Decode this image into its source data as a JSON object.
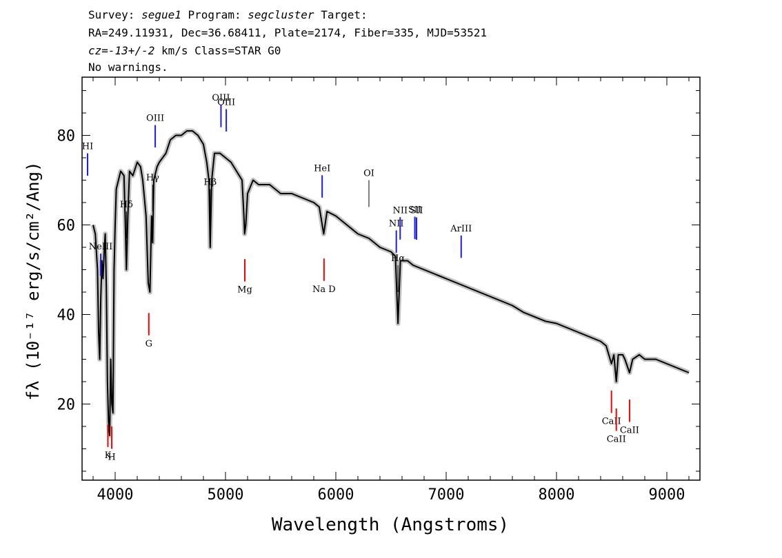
{
  "header": {
    "survey_label": "Survey:",
    "survey": "segue1",
    "program_label": "Program:",
    "program": "segcluster",
    "target_label": "Target:",
    "line2": "RA=249.11931, Dec=36.68411, Plate=2174, Fiber=335, MJD=53521",
    "cz_label": "cz=",
    "cz_value": "-13+/-2",
    "cz_unit": "km/s",
    "class_text": "Class=STAR G0",
    "warnings": "No warnings."
  },
  "chart_data": {
    "type": "line",
    "xlabel": "Wavelength (Angstroms)",
    "ylabel": "fλ (10⁻¹⁷ erg/s/cm²/Ang)",
    "xlim": [
      3700,
      9300
    ],
    "ylim": [
      3,
      93
    ],
    "x_ticks": [
      4000,
      5000,
      6000,
      7000,
      8000,
      9000
    ],
    "y_ticks": [
      20,
      40,
      60,
      80
    ],
    "grid": false,
    "legend": "none",
    "series": [
      {
        "color": "#000000",
        "error_color": "#bbbbbb",
        "points": [
          [
            3800,
            60
          ],
          [
            3820,
            58
          ],
          [
            3840,
            50
          ],
          [
            3850,
            36
          ],
          [
            3860,
            30
          ],
          [
            3870,
            44
          ],
          [
            3880,
            52
          ],
          [
            3890,
            48
          ],
          [
            3900,
            54
          ],
          [
            3910,
            58
          ],
          [
            3920,
            46
          ],
          [
            3930,
            25
          ],
          [
            3940,
            16
          ],
          [
            3950,
            13
          ],
          [
            3960,
            30
          ],
          [
            3970,
            20
          ],
          [
            3980,
            18
          ],
          [
            3990,
            50
          ],
          [
            4000,
            60
          ],
          [
            4010,
            68
          ],
          [
            4030,
            70
          ],
          [
            4050,
            72
          ],
          [
            4080,
            71
          ],
          [
            4090,
            62
          ],
          [
            4102,
            50
          ],
          [
            4115,
            62
          ],
          [
            4130,
            72
          ],
          [
            4160,
            71
          ],
          [
            4200,
            74
          ],
          [
            4230,
            73
          ],
          [
            4250,
            70
          ],
          [
            4280,
            62
          ],
          [
            4300,
            47
          ],
          [
            4315,
            45
          ],
          [
            4330,
            62
          ],
          [
            4340,
            56
          ],
          [
            4350,
            70
          ],
          [
            4380,
            73
          ],
          [
            4400,
            74
          ],
          [
            4430,
            75
          ],
          [
            4460,
            76
          ],
          [
            4500,
            79
          ],
          [
            4550,
            80
          ],
          [
            4600,
            80
          ],
          [
            4650,
            81
          ],
          [
            4700,
            81
          ],
          [
            4750,
            80
          ],
          [
            4800,
            78
          ],
          [
            4830,
            74
          ],
          [
            4850,
            70
          ],
          [
            4861,
            55
          ],
          [
            4875,
            70
          ],
          [
            4900,
            76
          ],
          [
            4950,
            76
          ],
          [
            5000,
            75
          ],
          [
            5050,
            74
          ],
          [
            5100,
            72
          ],
          [
            5150,
            70
          ],
          [
            5167,
            62
          ],
          [
            5173,
            58
          ],
          [
            5184,
            60
          ],
          [
            5200,
            67
          ],
          [
            5250,
            70
          ],
          [
            5300,
            69
          ],
          [
            5400,
            69
          ],
          [
            5500,
            67
          ],
          [
            5600,
            67
          ],
          [
            5700,
            66
          ],
          [
            5800,
            65
          ],
          [
            5850,
            64
          ],
          [
            5890,
            58
          ],
          [
            5896,
            59
          ],
          [
            5920,
            63
          ],
          [
            6000,
            62
          ],
          [
            6100,
            60
          ],
          [
            6200,
            58
          ],
          [
            6300,
            57
          ],
          [
            6400,
            55
          ],
          [
            6500,
            54
          ],
          [
            6540,
            53
          ],
          [
            6563,
            38
          ],
          [
            6585,
            52
          ],
          [
            6650,
            52
          ],
          [
            6700,
            51
          ],
          [
            6800,
            50
          ],
          [
            6900,
            49
          ],
          [
            7000,
            48
          ],
          [
            7100,
            47
          ],
          [
            7200,
            46
          ],
          [
            7300,
            45
          ],
          [
            7400,
            44
          ],
          [
            7500,
            43
          ],
          [
            7600,
            42
          ],
          [
            7700,
            40.5
          ],
          [
            7800,
            39.5
          ],
          [
            7900,
            38.5
          ],
          [
            8000,
            38
          ],
          [
            8100,
            37
          ],
          [
            8200,
            36
          ],
          [
            8300,
            35
          ],
          [
            8400,
            34
          ],
          [
            8450,
            33
          ],
          [
            8498,
            29
          ],
          [
            8520,
            31
          ],
          [
            8542,
            25
          ],
          [
            8560,
            31
          ],
          [
            8600,
            31
          ],
          [
            8620,
            30
          ],
          [
            8662,
            27
          ],
          [
            8690,
            30
          ],
          [
            8750,
            31
          ],
          [
            8800,
            30
          ],
          [
            8900,
            30
          ],
          [
            9000,
            29
          ],
          [
            9100,
            28
          ],
          [
            9200,
            27
          ]
        ]
      }
    ],
    "emission_lines": [
      {
        "label": "HI",
        "x": 3750
      },
      {
        "label": "NeIII",
        "x": 3869
      },
      {
        "label": "OIII",
        "x": 4363
      },
      {
        "label": "OIII",
        "x": 4959
      },
      {
        "label": "OIII",
        "x": 5007
      },
      {
        "label": "HeI",
        "x": 5876
      },
      {
        "label": "NII",
        "x": 6548
      },
      {
        "label": "NII",
        "x": 6583
      },
      {
        "label": "SII",
        "x": 6716
      },
      {
        "label": "SII",
        "x": 6731
      },
      {
        "label": "ArIII",
        "x": 7136
      }
    ],
    "balmer_lines": [
      {
        "label": "Hδ",
        "x": 4102
      },
      {
        "label": "Hγ",
        "x": 4340
      },
      {
        "label": "Hβ",
        "x": 4861
      },
      {
        "label": "OI",
        "x": 6300
      },
      {
        "label": "Hα",
        "x": 6563
      }
    ],
    "absorption_lines": [
      {
        "label": "K",
        "x": 3934
      },
      {
        "label": "H",
        "x": 3969
      },
      {
        "label": "G",
        "x": 4305
      },
      {
        "label": "Mg",
        "x": 5175
      },
      {
        "label": "Na D",
        "x": 5893
      },
      {
        "label": "CaII",
        "x": 8498
      },
      {
        "label": "CaII",
        "x": 8542
      },
      {
        "label": "CaII",
        "x": 8662
      }
    ],
    "colors": {
      "emission": "#1a1aff",
      "absorption": "#ff0000",
      "balmer": "#000000",
      "spectrum": "#000000",
      "error": "#bbbbbb"
    }
  }
}
